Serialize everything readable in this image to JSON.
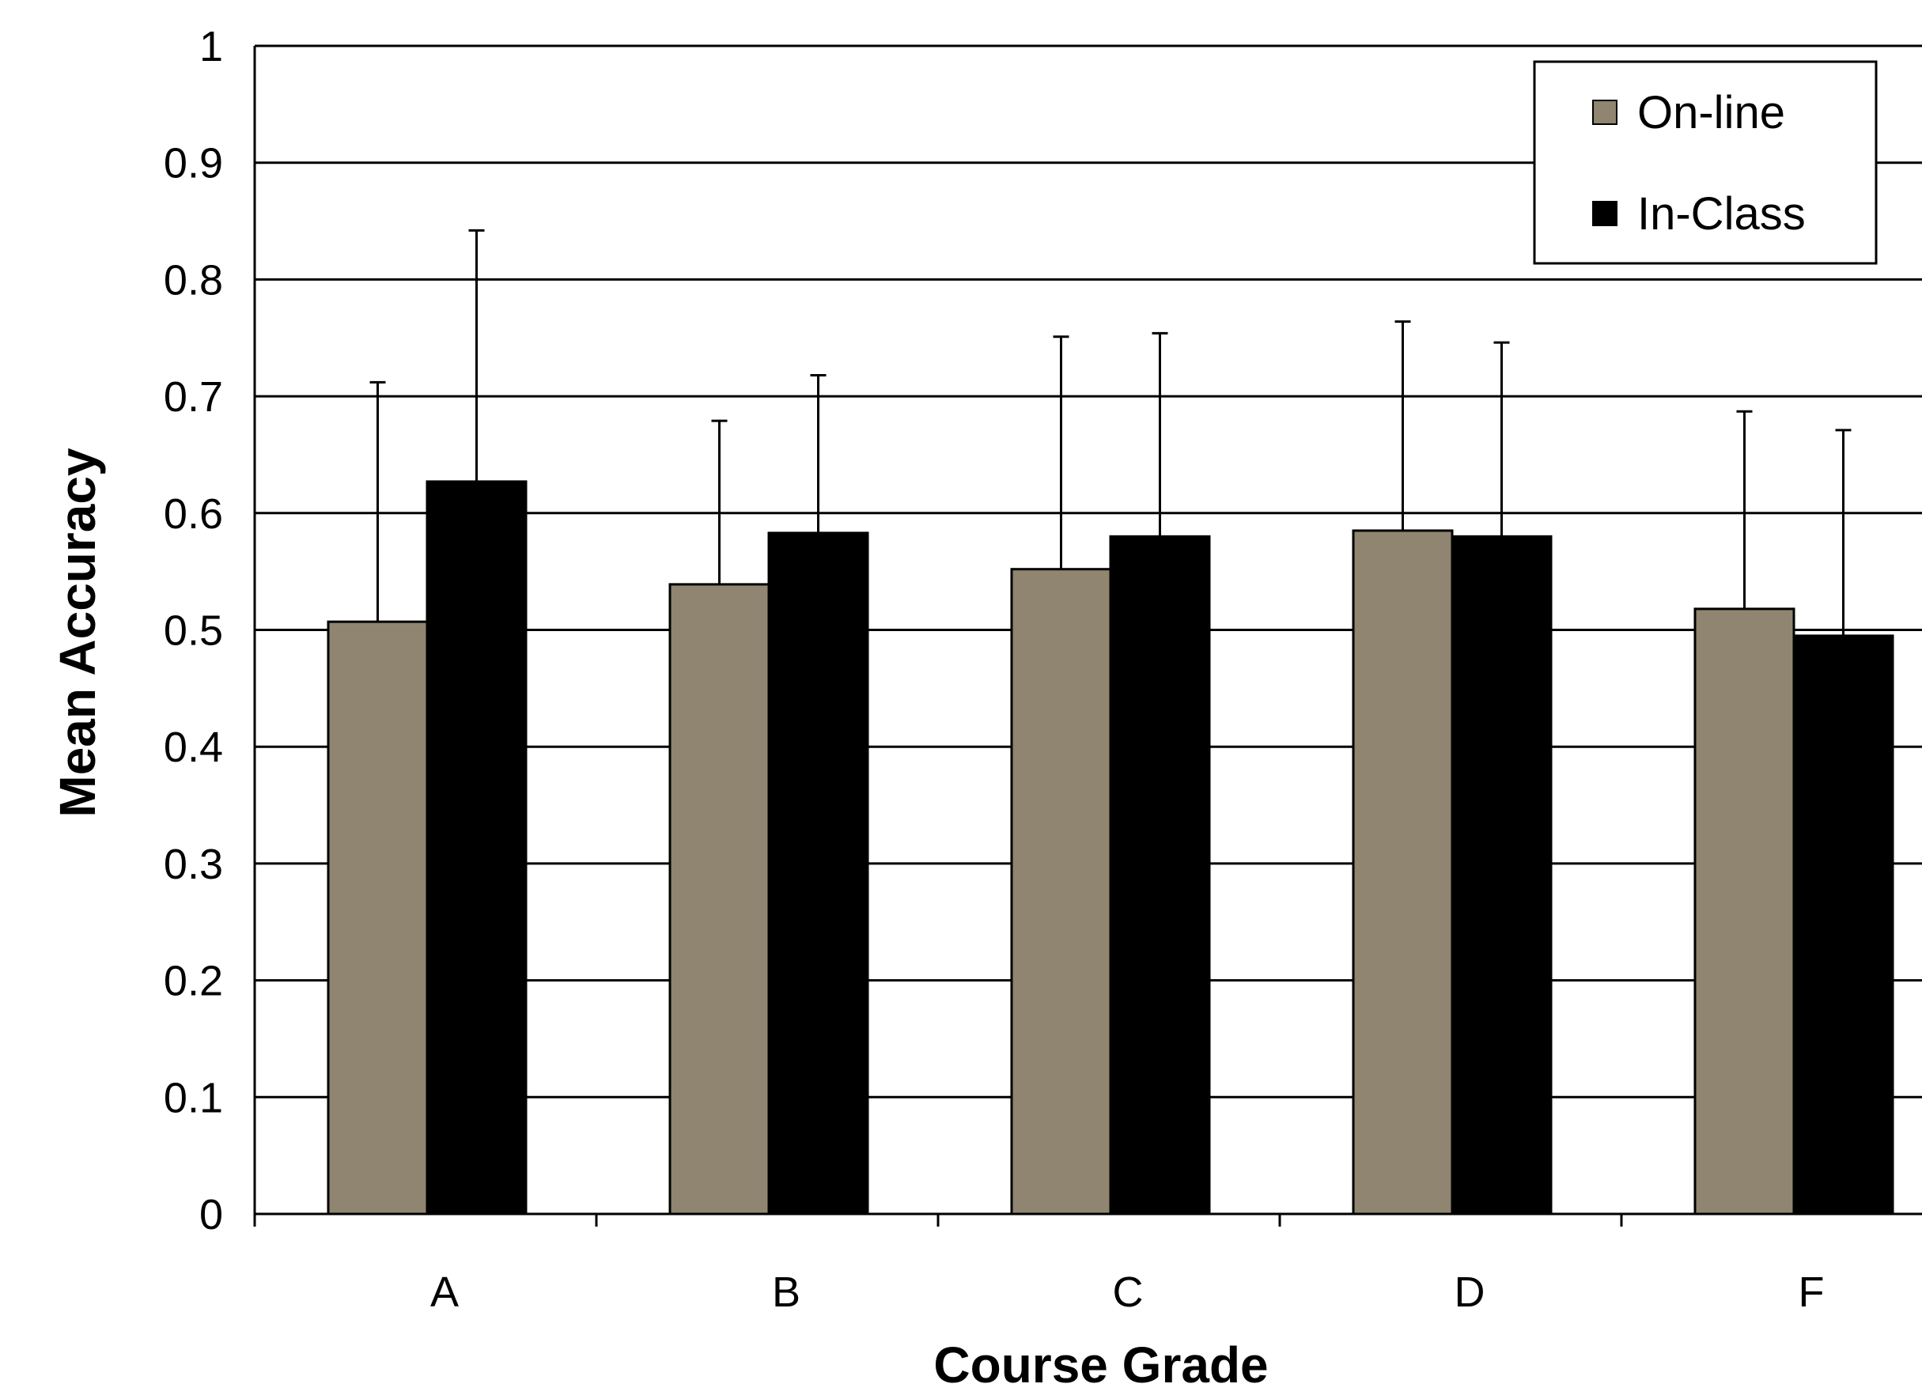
{
  "chart_data": {
    "type": "bar",
    "title": "",
    "xlabel": "Course Grade",
    "ylabel": "Mean Accuracy",
    "categories": [
      "A",
      "B",
      "C",
      "D",
      "F"
    ],
    "series": [
      {
        "name": "On-line",
        "color": "#8f8570",
        "values": [
          0.507,
          0.539,
          0.552,
          0.585,
          0.518
        ],
        "error_upper": [
          0.712,
          0.679,
          0.751,
          0.764,
          0.687
        ]
      },
      {
        "name": "In-Class",
        "color": "#000000",
        "values": [
          0.627,
          0.583,
          0.58,
          0.58,
          0.495
        ],
        "error_upper": [
          0.842,
          0.718,
          0.754,
          0.746,
          0.671
        ]
      }
    ],
    "ylim": [
      0,
      1
    ],
    "yticks": [
      0,
      0.1,
      0.2,
      0.3,
      0.4,
      0.5,
      0.6,
      0.7,
      0.8,
      0.9,
      1
    ],
    "ytick_labels": [
      "0",
      "0.1",
      "0.2",
      "0.3",
      "0.4",
      "0.5",
      "0.6",
      "0.7",
      "0.8",
      "0.9",
      "1"
    ],
    "grid": true,
    "legend_position": "top-right"
  }
}
